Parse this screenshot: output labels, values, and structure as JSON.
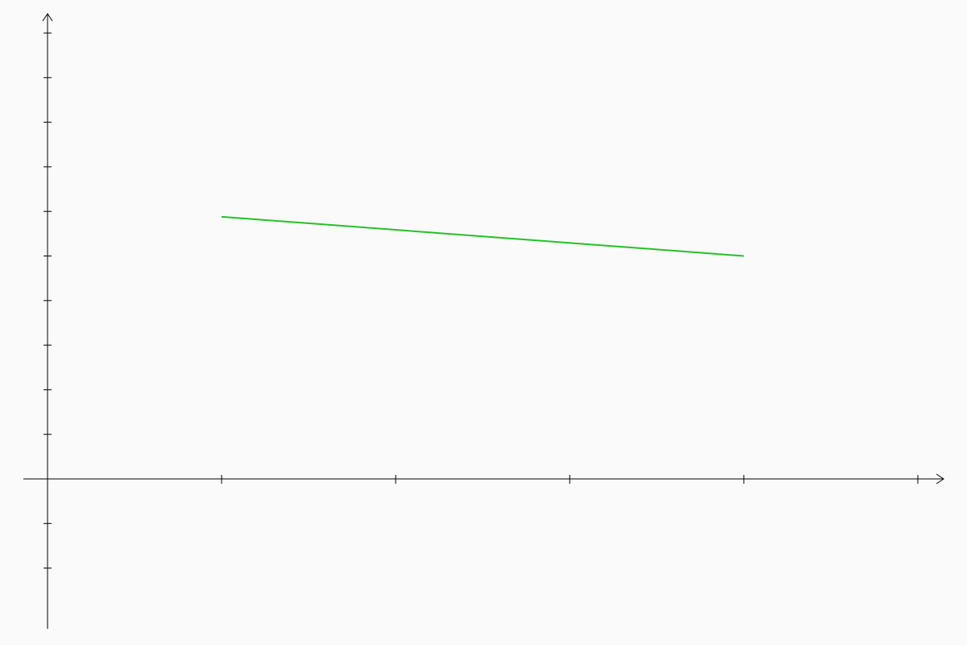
{
  "chart_data": {
    "type": "line",
    "title": "",
    "xlabel": "",
    "ylabel": "",
    "grid": false,
    "xlim": [
      0,
      5.14
    ],
    "ylim": [
      -3.4,
      10.4
    ],
    "x_ticks": [
      1,
      2,
      3,
      4,
      5
    ],
    "y_ticks": [
      -2,
      -1,
      1,
      2,
      3,
      4,
      5,
      6,
      7,
      8,
      9,
      10
    ],
    "series": [
      {
        "color": "#22c322",
        "points": [
          [
            1,
            5.88
          ],
          [
            4,
            5.0
          ]
        ]
      }
    ]
  }
}
